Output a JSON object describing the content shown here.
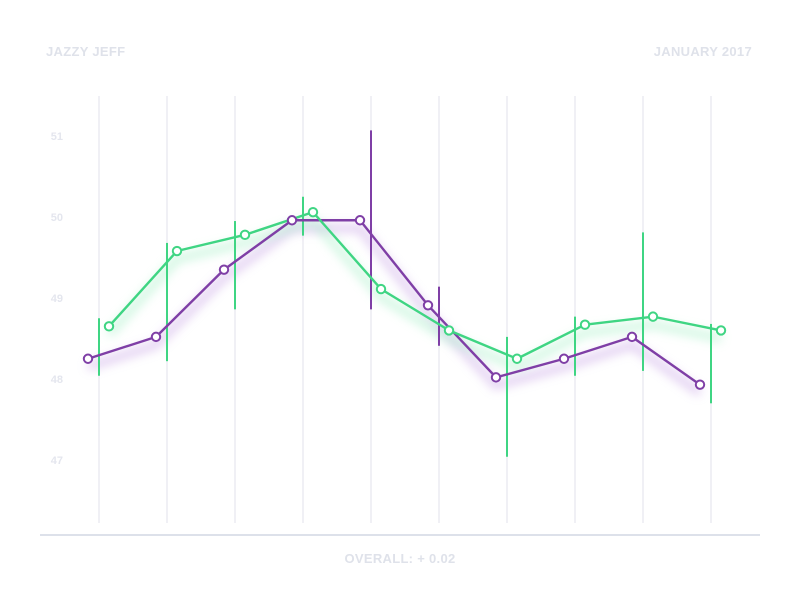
{
  "header": {
    "title": "JAZZY JEFF",
    "date": "JANUARY 2017"
  },
  "footer": {
    "summary": "OVERALL: + 0.02"
  },
  "colors": {
    "purple": "#7f3fa6",
    "green": "#3fd583",
    "grid": "#f0f0f5",
    "axis": "#dde1ea",
    "label": "#dfe2ea"
  },
  "chart_data": {
    "type": "line",
    "title": "JAZZY JEFF",
    "subtitle": "JANUARY 2017",
    "xlabel": "",
    "ylabel": "",
    "ylim": [
      46.2,
      51.5
    ],
    "yticks": [
      51,
      50,
      49,
      48,
      47
    ],
    "grid": {
      "vertical": true,
      "horizontal": false
    },
    "legend": null,
    "annotation": "OVERALL: + 0.02",
    "x": [
      1,
      2,
      3,
      4,
      5,
      6,
      7,
      8,
      9,
      10
    ],
    "series": [
      {
        "name": "purple",
        "color": "#7f3fa6",
        "values": [
          48.25,
          48.52,
          49.35,
          49.96,
          49.96,
          48.91,
          48.02,
          48.25,
          48.52,
          47.93
        ]
      },
      {
        "name": "green",
        "color": "#3fd583",
        "values": [
          48.65,
          49.58,
          49.78,
          50.06,
          49.11,
          48.6,
          48.25,
          48.67,
          48.77,
          48.6
        ]
      }
    ],
    "error_bars": [
      {
        "x": 1,
        "low": 48.04,
        "high": 48.75,
        "color": "green"
      },
      {
        "x": 2,
        "low": 48.22,
        "high": 49.68,
        "color": "green"
      },
      {
        "x": 3,
        "low": 48.86,
        "high": 49.95,
        "color": "green"
      },
      {
        "x": 4,
        "low": 49.77,
        "high": 50.25,
        "color": "green"
      },
      {
        "x": 5,
        "low": 48.86,
        "high": 51.07,
        "color": "purple"
      },
      {
        "x": 6,
        "low": 48.41,
        "high": 49.14,
        "color": "purple"
      },
      {
        "x": 7,
        "low": 47.04,
        "high": 48.52,
        "color": "green"
      },
      {
        "x": 8,
        "low": 48.04,
        "high": 48.77,
        "color": "green"
      },
      {
        "x": 9,
        "low": 48.1,
        "high": 49.81,
        "color": "green"
      },
      {
        "x": 10,
        "low": 47.7,
        "high": 48.68,
        "color": "green"
      }
    ]
  }
}
